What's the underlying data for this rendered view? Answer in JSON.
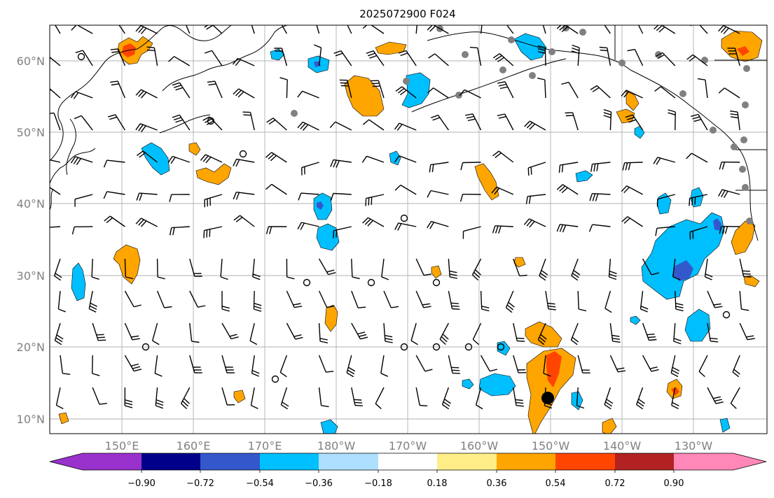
{
  "title": "2025072900 F024",
  "map": {
    "lat_labels": [
      "60°N",
      "50°N",
      "40°N",
      "30°N",
      "20°N",
      "10°N"
    ],
    "lon_labels": [
      "150°E",
      "160°E",
      "170°E",
      "180°W",
      "170°W",
      "160°W",
      "150°W",
      "140°W",
      "130°W"
    ],
    "grid": true,
    "grid_color": "#b0b0b0",
    "coastline_color": "#000000",
    "tick_label_color": "#808080"
  },
  "colorbar": {
    "ticks": [
      "−0.90",
      "−0.72",
      "−0.54",
      "−0.36",
      "−0.18",
      "0.18",
      "0.36",
      "0.54",
      "0.72",
      "0.90"
    ],
    "colors": [
      "#9932CC",
      "#00008B",
      "#3358CC",
      "#00BFFF",
      "#ADE0FF",
      "#FFFFFF",
      "#FFEE88",
      "#FFA500",
      "#FF4500",
      "#B22222",
      "#FF88B8"
    ],
    "extend": "both"
  },
  "field_colors": {
    "negative_light": "#00BFFF",
    "negative_mid": "#3358CC",
    "positive_light": "#FFA500",
    "positive_mid": "#FF4500",
    "positive_pale": "#FFEE88",
    "station_marker": "#808080",
    "tc_marker": "#000000"
  }
}
